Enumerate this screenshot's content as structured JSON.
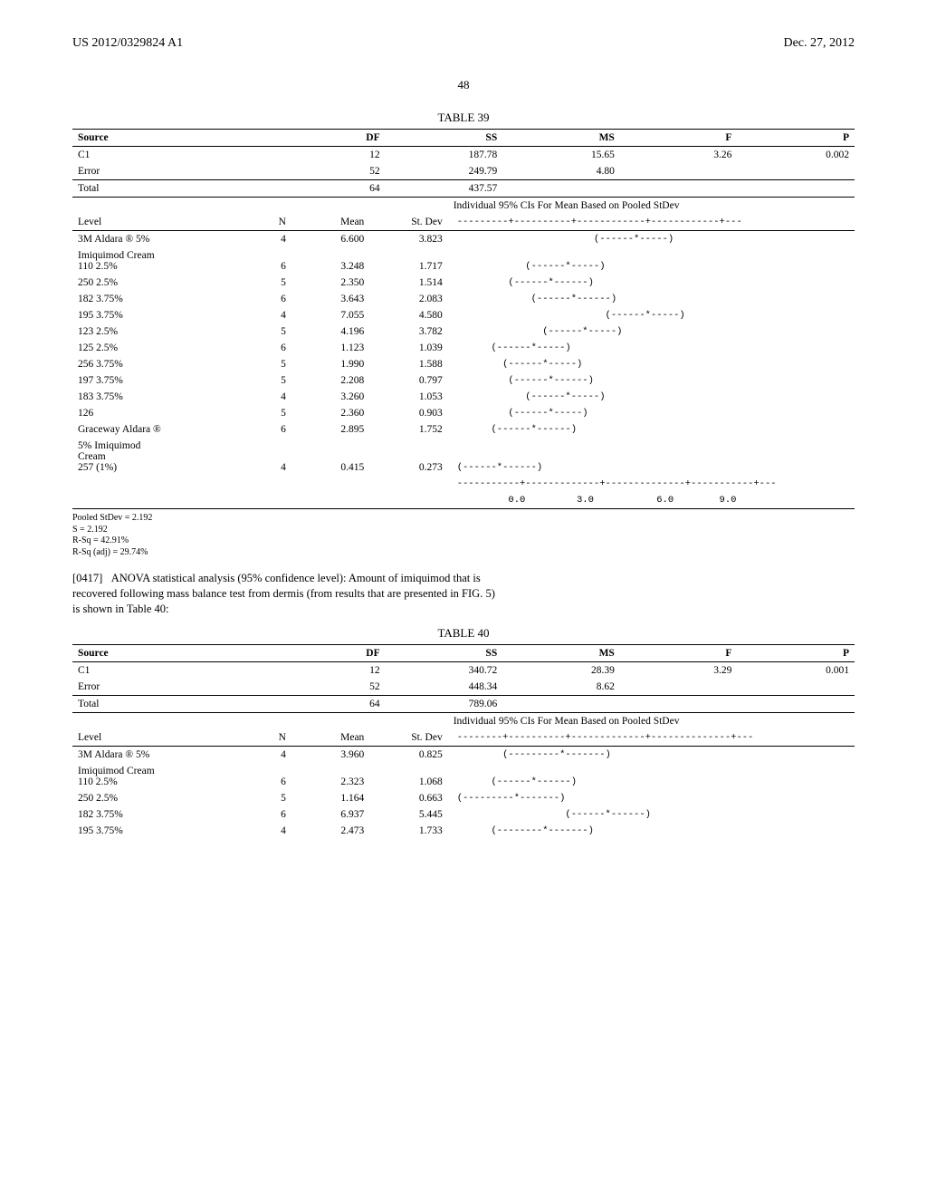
{
  "header": {
    "pub_number": "US 2012/0329824 A1",
    "date": "Dec. 27, 2012",
    "page_num": "48"
  },
  "table39": {
    "title": "TABLE 39",
    "anova_headers": [
      "Source",
      "DF",
      "SS",
      "MS",
      "F",
      "P"
    ],
    "anova_rows": [
      {
        "source": "C1",
        "df": "12",
        "ss": "187.78",
        "ms": "15.65",
        "f": "3.26",
        "p": "0.002"
      },
      {
        "source": "Error",
        "df": "52",
        "ss": "249.79",
        "ms": "4.80",
        "f": "",
        "p": ""
      }
    ],
    "anova_total": {
      "source": "Total",
      "df": "64",
      "ss": "437.57"
    },
    "level_headers": {
      "level": "Level",
      "n": "N",
      "mean": "Mean",
      "stdev": "St. Dev",
      "ci_title": "Individual 95% CIs For Mean Based on Pooled StDev"
    },
    "scale_line": "---------+----------+------------+------------+---",
    "rows": [
      {
        "level": "3M Aldara ® 5%",
        "n": "4",
        "mean": "6.600",
        "stdev": "3.823",
        "ci": "                        (------*-----)"
      },
      {
        "level": "Imiquimod Cream\n110 2.5%",
        "n": "6",
        "mean": "3.248",
        "stdev": "1.717",
        "ci": "            (------*-----)"
      },
      {
        "level": "250 2.5%",
        "n": "5",
        "mean": "2.350",
        "stdev": "1.514",
        "ci": "         (------*------)"
      },
      {
        "level": "182 3.75%",
        "n": "6",
        "mean": "3.643",
        "stdev": "2.083",
        "ci": "             (------*------)"
      },
      {
        "level": "195 3.75%",
        "n": "4",
        "mean": "7.055",
        "stdev": "4.580",
        "ci": "                          (------*-----)"
      },
      {
        "level": "123 2.5%",
        "n": "5",
        "mean": "4.196",
        "stdev": "3.782",
        "ci": "               (------*-----)"
      },
      {
        "level": "125 2.5%",
        "n": "6",
        "mean": "1.123",
        "stdev": "1.039",
        "ci": "      (------*-----)"
      },
      {
        "level": "256 3.75%",
        "n": "5",
        "mean": "1.990",
        "stdev": "1.588",
        "ci": "        (------*-----)"
      },
      {
        "level": "197 3.75%",
        "n": "5",
        "mean": "2.208",
        "stdev": "0.797",
        "ci": "         (------*------)"
      },
      {
        "level": "183 3.75%",
        "n": "4",
        "mean": "3.260",
        "stdev": "1.053",
        "ci": "            (------*-----)"
      },
      {
        "level": "126",
        "n": "5",
        "mean": "2.360",
        "stdev": "0.903",
        "ci": "         (------*-----)"
      },
      {
        "level": "Graceway Aldara ®",
        "n": "6",
        "mean": "2.895",
        "stdev": "1.752",
        "ci": "      (------*------)"
      },
      {
        "level": "5% Imiquimod\nCream\n257 (1%)",
        "n": "4",
        "mean": "0.415",
        "stdev": "0.273",
        "ci": "(------*------)"
      }
    ],
    "bottom_scale": "-----------+-------------+--------------+-----------+---",
    "axis_labels": "         0.0         3.0           6.0        9.0",
    "footnotes": [
      "Pooled StDev = 2.192",
      "S = 2.192",
      "R-Sq = 42.91%",
      "R-Sq (adj) = 29.74%"
    ]
  },
  "paragraph": {
    "num": "[0417]",
    "text": "ANOVA statistical analysis (95% confidence level): Amount of imiquimod that is recovered following mass balance test from dermis (from results that are presented in FIG. ",
    "bold": "5",
    "tail": ") is shown in Table 40:"
  },
  "table40": {
    "title": "TABLE 40",
    "anova_headers": [
      "Source",
      "DF",
      "SS",
      "MS",
      "F",
      "P"
    ],
    "anova_rows": [
      {
        "source": "C1",
        "df": "12",
        "ss": "340.72",
        "ms": "28.39",
        "f": "3.29",
        "p": "0.001"
      },
      {
        "source": "Error",
        "df": "52",
        "ss": "448.34",
        "ms": "8.62",
        "f": "",
        "p": ""
      }
    ],
    "anova_total": {
      "source": "Total",
      "df": "64",
      "ss": "789.06"
    },
    "level_headers": {
      "level": "Level",
      "n": "N",
      "mean": "Mean",
      "stdev": "St. Dev",
      "ci_title": "Individual 95% CIs For Mean Based on Pooled StDev"
    },
    "scale_line": "--------+----------+-------------+--------------+---",
    "rows": [
      {
        "level": "3M Aldara ® 5%",
        "n": "4",
        "mean": "3.960",
        "stdev": "0.825",
        "ci": "        (---------*-------)"
      },
      {
        "level": "Imiquimod Cream\n110 2.5%",
        "n": "6",
        "mean": "2.323",
        "stdev": "1.068",
        "ci": "      (------*------)"
      },
      {
        "level": "250 2.5%",
        "n": "5",
        "mean": "1.164",
        "stdev": "0.663",
        "ci": "(---------*-------)"
      },
      {
        "level": "182 3.75%",
        "n": "6",
        "mean": "6.937",
        "stdev": "5.445",
        "ci": "                   (------*------)"
      },
      {
        "level": "195 3.75%",
        "n": "4",
        "mean": "2.473",
        "stdev": "1.733",
        "ci": "      (--------*-------)"
      }
    ]
  }
}
